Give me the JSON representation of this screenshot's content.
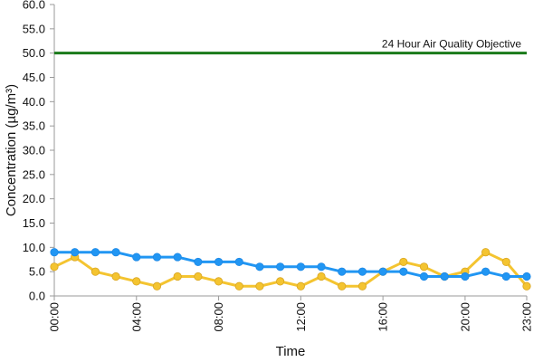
{
  "chart_data": {
    "type": "line",
    "title": "",
    "xlabel": "Time",
    "ylabel": "Concentration (µg/m³)",
    "ylim": [
      0,
      60
    ],
    "y_ticks": [
      "0.0",
      "5.0",
      "10.0",
      "15.0",
      "20.0",
      "25.0",
      "30.0",
      "35.0",
      "40.0",
      "45.0",
      "50.0",
      "55.0",
      "60.0"
    ],
    "x": [
      "00:00",
      "01:00",
      "02:00",
      "03:00",
      "04:00",
      "05:00",
      "06:00",
      "07:00",
      "08:00",
      "09:00",
      "10:00",
      "11:00",
      "12:00",
      "13:00",
      "14:00",
      "15:00",
      "16:00",
      "17:00",
      "18:00",
      "19:00",
      "20:00",
      "21:00",
      "22:00",
      "23:00"
    ],
    "x_tick_labels": [
      "00:00",
      "04:00",
      "08:00",
      "12:00",
      "16:00",
      "20:00",
      "23:00"
    ],
    "grid": false,
    "legend": "none",
    "series": [
      {
        "color": "#2196f3",
        "marker": "circle",
        "values": [
          9,
          9,
          9,
          9,
          8,
          8,
          8,
          7,
          7,
          7,
          6,
          6,
          6,
          6,
          5,
          5,
          5,
          5,
          4,
          4,
          4,
          5,
          4,
          4
        ]
      },
      {
        "color": "#f4c430",
        "marker": "circle",
        "values": [
          6,
          8,
          5,
          4,
          3,
          2,
          4,
          4,
          3,
          2,
          2,
          3,
          2,
          4,
          2,
          2,
          5,
          7,
          6,
          4,
          5,
          9,
          7,
          2
        ]
      }
    ],
    "reference_line": {
      "label": "24 Hour Air Quality Objective",
      "value": 50,
      "color": "#1a7a1a"
    }
  }
}
